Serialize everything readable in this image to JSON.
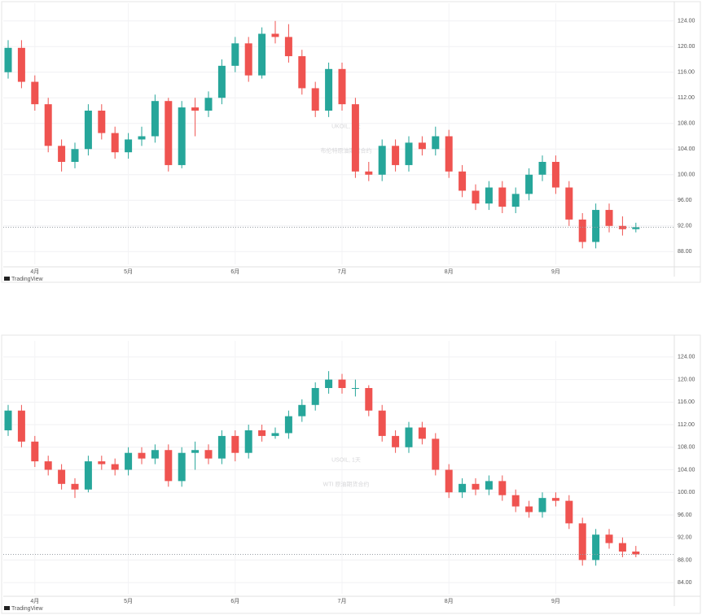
{
  "chart_data": [
    {
      "type": "candlestick",
      "title": "UKOIL, 1天",
      "subtitle": "布伦特原油期货合约",
      "brand": "TradingView",
      "x": [
        null,
        null,
        "4月",
        null,
        null,
        null,
        null,
        null,
        null,
        "5月",
        null,
        null,
        null,
        null,
        null,
        null,
        null,
        "6月",
        null,
        null,
        null,
        null,
        null,
        null,
        null,
        "7月",
        null,
        null,
        null,
        null,
        null,
        null,
        null,
        "8月",
        null,
        null,
        null,
        null,
        null,
        null,
        null,
        "9月",
        null,
        null,
        null,
        null,
        null,
        null
      ],
      "open": [
        116,
        119.8,
        114.5,
        111,
        104.5,
        102,
        104,
        110,
        106.5,
        103.5,
        105.5,
        106,
        111.5,
        101.5,
        110.5,
        110,
        112,
        117,
        120.5,
        115.5,
        122,
        121.5,
        118.5,
        113.5,
        110,
        116.5,
        111,
        100.5,
        100,
        104.5,
        101.5,
        105,
        104,
        106,
        100.5,
        97.5,
        95.5,
        98,
        95,
        97,
        100,
        102,
        98,
        93,
        89.5,
        94.5,
        92,
        91.5
      ],
      "high": [
        121,
        121,
        115.5,
        112,
        105.5,
        105,
        111,
        111,
        107.5,
        106.5,
        107.5,
        112.5,
        112,
        111.5,
        112,
        113,
        118,
        121.5,
        121.5,
        123,
        124,
        123.5,
        119.5,
        114.5,
        117.5,
        117.5,
        112,
        102,
        105.5,
        105.5,
        106,
        106,
        107.5,
        107,
        101.5,
        98.5,
        99,
        99,
        98,
        101,
        103,
        103,
        99,
        94,
        95.5,
        95.5,
        93.5,
        92.5
      ],
      "low": [
        115,
        113.5,
        110,
        103.5,
        100.5,
        101,
        103,
        105.5,
        102.5,
        102.5,
        104.5,
        105,
        100.5,
        101,
        106,
        109,
        111,
        116,
        114.5,
        115,
        120.5,
        117.5,
        112.5,
        109,
        109,
        110,
        99.5,
        99,
        99,
        100.5,
        100.5,
        103,
        103,
        99.5,
        96.5,
        94.5,
        94.5,
        94,
        94,
        96,
        99,
        97,
        92,
        88.5,
        88.5,
        91,
        90.5,
        91
      ],
      "close": [
        119.8,
        114.5,
        111,
        104.5,
        102,
        104,
        110,
        106.5,
        103.5,
        105.5,
        106,
        111.5,
        101.5,
        110.5,
        110,
        112,
        117,
        120.5,
        115.5,
        122,
        121.5,
        118.5,
        113.5,
        110,
        116.5,
        111,
        100.5,
        100,
        104.5,
        101.5,
        105,
        104,
        106,
        100.5,
        97.5,
        95.5,
        98,
        95,
        97,
        100,
        102,
        98,
        93,
        89.5,
        94.5,
        92,
        91.5,
        91.8
      ],
      "ylim": [
        86,
        126
      ],
      "yticks": [
        {
          "value": 88,
          "label": "88.00"
        },
        {
          "value": 92,
          "label": "92.00"
        },
        {
          "value": 96,
          "label": "96.00"
        },
        {
          "value": 100,
          "label": "100.00"
        },
        {
          "value": 104,
          "label": "104.00"
        },
        {
          "value": 108,
          "label": "108.00"
        },
        {
          "value": 112,
          "label": "112.00"
        },
        {
          "value": 116,
          "label": "116.00"
        },
        {
          "value": 120,
          "label": "120.00"
        },
        {
          "value": 124,
          "label": "124.00"
        }
      ],
      "up_color": "#26a69a",
      "down_color": "#ef5350",
      "grid": true
    },
    {
      "type": "candlestick",
      "title": "USOIL, 1天",
      "subtitle": "WTI 原油期货合约",
      "brand": "TradingView",
      "x": [
        null,
        null,
        "4月",
        null,
        null,
        null,
        null,
        null,
        null,
        "5月",
        null,
        null,
        null,
        null,
        null,
        null,
        null,
        "6月",
        null,
        null,
        null,
        null,
        null,
        null,
        null,
        "7月",
        null,
        null,
        null,
        null,
        null,
        null,
        null,
        "8月",
        null,
        null,
        null,
        null,
        null,
        null,
        null,
        "9月",
        null,
        null,
        null,
        null,
        null,
        null
      ],
      "open": [
        111,
        114.5,
        109,
        105.5,
        104,
        101.5,
        100.5,
        105.5,
        105,
        104,
        107,
        106,
        107.5,
        102,
        107,
        107.5,
        106,
        110,
        107,
        111,
        110,
        110.5,
        113.5,
        115.5,
        118.5,
        120,
        118.5,
        118.5,
        114.5,
        110,
        108,
        111.5,
        109.5,
        104,
        100,
        101.5,
        100.5,
        102,
        99.5,
        97.5,
        96.5,
        99,
        98.5,
        94.5,
        88,
        92.5,
        91,
        89.5
      ],
      "high": [
        115.5,
        115.5,
        110,
        106.5,
        105,
        102.5,
        106.5,
        106.5,
        106,
        108,
        108,
        108.5,
        108.5,
        108,
        109,
        108.5,
        111,
        111,
        112,
        112,
        111.5,
        114.5,
        116.5,
        119.5,
        121.5,
        121,
        120,
        119,
        115.5,
        111,
        112.5,
        112.5,
        110.5,
        105,
        102.5,
        102.5,
        103,
        103,
        100.5,
        98.5,
        100,
        100,
        99.5,
        95.5,
        93.5,
        93.5,
        92,
        90.5
      ],
      "low": [
        110,
        108,
        104.5,
        103,
        100.5,
        99,
        100,
        104,
        103,
        103,
        105,
        105,
        101,
        101,
        104,
        105,
        105,
        105.5,
        106,
        109,
        109.5,
        109.5,
        112.5,
        114.5,
        117.5,
        117.5,
        117,
        113.5,
        109,
        107,
        107,
        108.5,
        103,
        99,
        99,
        99.5,
        99.5,
        98.5,
        96.5,
        95.5,
        95.5,
        97.5,
        93.5,
        87,
        87,
        90,
        88.5,
        88.5
      ],
      "close": [
        114.5,
        109,
        105.5,
        104,
        101.5,
        100.5,
        105.5,
        105,
        104,
        107,
        106,
        107.5,
        102,
        107,
        107.5,
        106,
        110,
        107,
        111,
        110,
        110.5,
        113.5,
        115.5,
        118.5,
        120,
        118.5,
        118.5,
        114.5,
        110,
        108,
        111.5,
        109.5,
        104,
        100,
        101.5,
        100.5,
        102,
        99.5,
        97.5,
        96.5,
        99,
        98.5,
        94.5,
        88,
        92.5,
        91,
        89.5,
        89
      ],
      "ylim": [
        82,
        126
      ],
      "yticks": [
        {
          "value": 84,
          "label": "84.00"
        },
        {
          "value": 88,
          "label": "88.00"
        },
        {
          "value": 92,
          "label": "92.00"
        },
        {
          "value": 96,
          "label": "96.00"
        },
        {
          "value": 100,
          "label": "100.00"
        },
        {
          "value": 104,
          "label": "104.00"
        },
        {
          "value": 108,
          "label": "108.00"
        },
        {
          "value": 112,
          "label": "112.00"
        },
        {
          "value": 116,
          "label": "116.00"
        },
        {
          "value": 120,
          "label": "120.00"
        },
        {
          "value": 124,
          "label": "124.00"
        }
      ],
      "up_color": "#26a69a",
      "down_color": "#ef5350",
      "grid": true
    }
  ]
}
